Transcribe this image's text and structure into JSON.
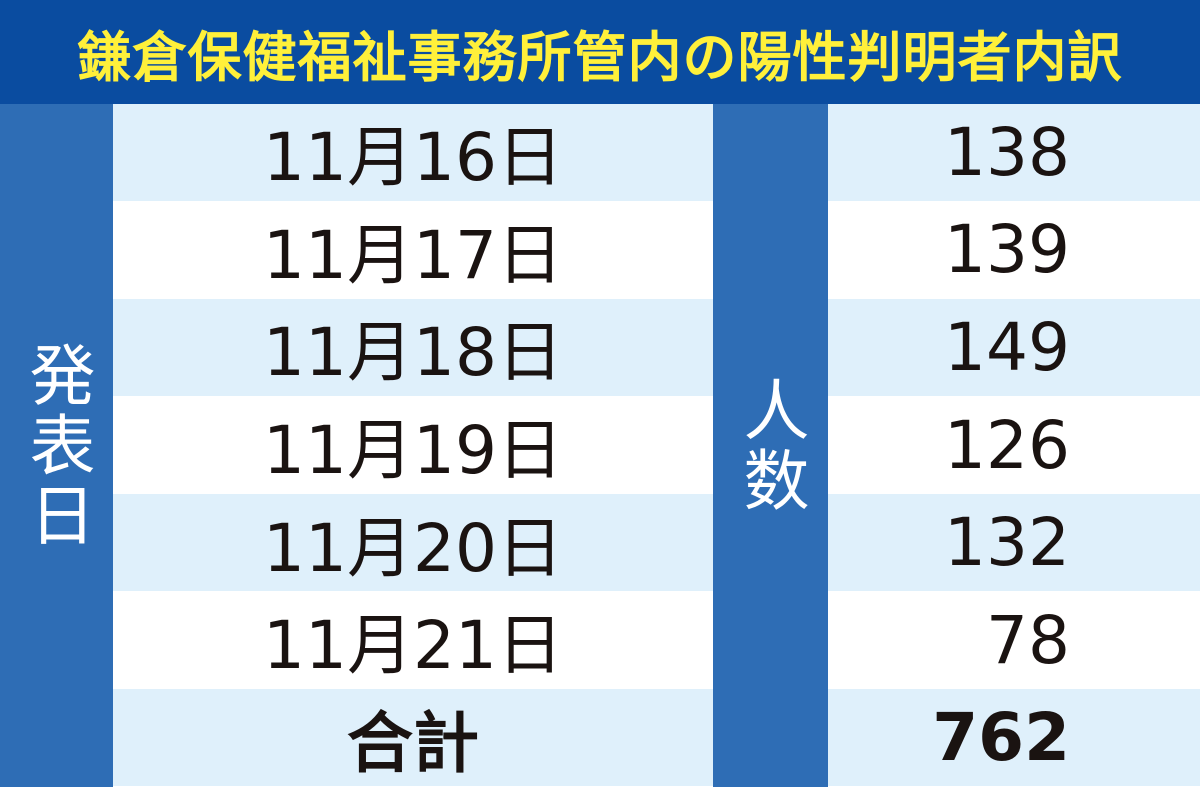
{
  "title": "鎌倉保健福祉事務所管内の陽性判明者内訳",
  "colors": {
    "title_bg": "#0a4ca0",
    "title_text": "#fff03a",
    "header_col": "#2e6db5",
    "row_alt": "#dff0fb"
  },
  "chart_data": {
    "type": "table",
    "title": "鎌倉保健福祉事務所管内の陽性判明者内訳",
    "columns": [
      "発表日",
      "人数"
    ],
    "rows": [
      {
        "date": "11月16日",
        "count": "138"
      },
      {
        "date": "11月17日",
        "count": "139"
      },
      {
        "date": "11月18日",
        "count": "149"
      },
      {
        "date": "11月19日",
        "count": "126"
      },
      {
        "date": "11月20日",
        "count": "132"
      },
      {
        "date": "11月21日",
        "count": "78"
      }
    ],
    "total": {
      "label": "合計",
      "count": "762"
    }
  }
}
